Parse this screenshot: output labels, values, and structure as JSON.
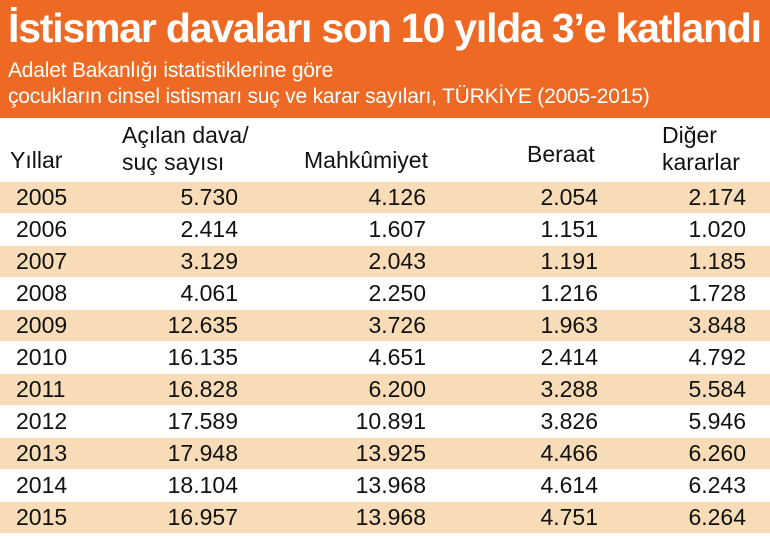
{
  "title": "İstismar davaları  son 10 yılda 3’e katlandı",
  "subtitle_line1": "Adalet Bakanlığı istatistiklerine göre",
  "subtitle_line2": "çocukların cinsel istismarı suç ve karar sayıları, TÜRKİYE (2005-2015)",
  "colors": {
    "header": "#ee6a24",
    "row_shade": "#f8dcb8",
    "text": "#111111"
  },
  "chart_data": {
    "type": "table",
    "columns": [
      {
        "key": "year",
        "lines": [
          "Yıllar"
        ]
      },
      {
        "key": "acilan",
        "lines": [
          "Açılan dava/",
          "suç sayısı"
        ]
      },
      {
        "key": "mahkumiyet",
        "lines": [
          "Mahkûmiyet"
        ]
      },
      {
        "key": "beraat",
        "lines": [
          "Beraat"
        ]
      },
      {
        "key": "diger",
        "lines": [
          "Diğer",
          "kararlar"
        ]
      }
    ],
    "rows": [
      {
        "year": "2005",
        "acilan": "5.730",
        "mahkumiyet": "4.126",
        "beraat": "2.054",
        "diger": "2.174"
      },
      {
        "year": "2006",
        "acilan": "2.414",
        "mahkumiyet": "1.607",
        "beraat": "1.151",
        "diger": "1.020"
      },
      {
        "year": "2007",
        "acilan": "3.129",
        "mahkumiyet": "2.043",
        "beraat": "1.191",
        "diger": "1.185"
      },
      {
        "year": "2008",
        "acilan": "4.061",
        "mahkumiyet": "2.250",
        "beraat": "1.216",
        "diger": "1.728"
      },
      {
        "year": "2009",
        "acilan": "12.635",
        "mahkumiyet": "3.726",
        "beraat": "1.963",
        "diger": "3.848"
      },
      {
        "year": "2010",
        "acilan": "16.135",
        "mahkumiyet": "4.651",
        "beraat": "2.414",
        "diger": "4.792"
      },
      {
        "year": "2011",
        "acilan": "16.828",
        "mahkumiyet": "6.200",
        "beraat": "3.288",
        "diger": "5.584"
      },
      {
        "year": "2012",
        "acilan": "17.589",
        "mahkumiyet": "10.891",
        "beraat": "3.826",
        "diger": "5.946"
      },
      {
        "year": "2013",
        "acilan": "17.948",
        "mahkumiyet": "13.925",
        "beraat": "4.466",
        "diger": "6.260"
      },
      {
        "year": "2014",
        "acilan": "18.104",
        "mahkumiyet": "13.968",
        "beraat": "4.614",
        "diger": "6.243"
      },
      {
        "year": "2015",
        "acilan": "16.957",
        "mahkumiyet": "13.968",
        "beraat": "4.751",
        "diger": "6.264"
      }
    ]
  }
}
